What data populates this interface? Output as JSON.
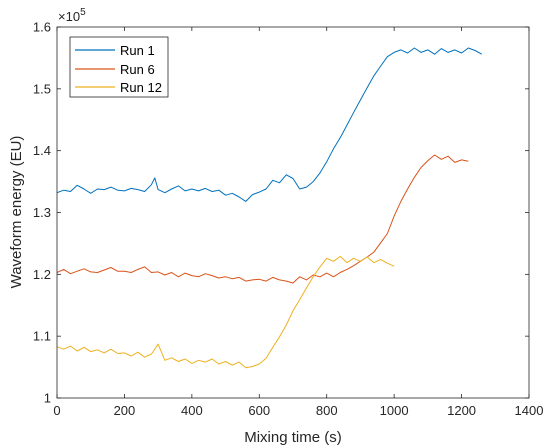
{
  "chart_data": {
    "type": "line",
    "title": "",
    "xlabel": "Mixing time (s)",
    "ylabel": "Waveform energy (EU)",
    "xlim": [
      0,
      1400
    ],
    "ylim": [
      1.0,
      1.6
    ],
    "x_ticks": [
      0,
      200,
      400,
      600,
      800,
      1000,
      1200,
      1400
    ],
    "y_ticks": [
      1.0,
      1.1,
      1.2,
      1.3,
      1.4,
      1.5,
      1.6
    ],
    "y_tick_labels": [
      "1",
      "1.1",
      "1.2",
      "1.3",
      "1.4",
      "1.5",
      "1.6"
    ],
    "y_multiplier_base": "×10",
    "y_multiplier_exp": "5",
    "grid": false,
    "legend_position": "top-left",
    "series": [
      {
        "name": "Run 1",
        "color": "#0072BD",
        "x": [
          0,
          20,
          40,
          60,
          80,
          100,
          120,
          140,
          160,
          180,
          200,
          220,
          240,
          260,
          280,
          290,
          300,
          320,
          340,
          360,
          380,
          400,
          420,
          440,
          460,
          480,
          500,
          520,
          540,
          560,
          580,
          600,
          620,
          640,
          660,
          680,
          700,
          720,
          740,
          760,
          780,
          800,
          820,
          840,
          860,
          880,
          900,
          920,
          940,
          960,
          980,
          1000,
          1020,
          1040,
          1060,
          1080,
          1100,
          1120,
          1140,
          1160,
          1180,
          1200,
          1220,
          1240,
          1260
        ],
        "y": [
          1.332,
          1.336,
          1.334,
          1.344,
          1.338,
          1.331,
          1.338,
          1.337,
          1.341,
          1.336,
          1.335,
          1.339,
          1.337,
          1.334,
          1.345,
          1.356,
          1.337,
          1.332,
          1.338,
          1.343,
          1.335,
          1.338,
          1.335,
          1.339,
          1.334,
          1.336,
          1.328,
          1.331,
          1.325,
          1.318,
          1.329,
          1.333,
          1.338,
          1.352,
          1.348,
          1.361,
          1.355,
          1.338,
          1.341,
          1.35,
          1.364,
          1.382,
          1.403,
          1.421,
          1.441,
          1.462,
          1.482,
          1.502,
          1.521,
          1.537,
          1.552,
          1.559,
          1.563,
          1.558,
          1.566,
          1.559,
          1.563,
          1.556,
          1.565,
          1.559,
          1.563,
          1.558,
          1.566,
          1.562,
          1.556
        ]
      },
      {
        "name": "Run 6",
        "color": "#D95319",
        "x": [
          0,
          20,
          40,
          60,
          80,
          100,
          120,
          140,
          160,
          180,
          200,
          220,
          240,
          260,
          280,
          300,
          320,
          340,
          360,
          380,
          400,
          420,
          440,
          460,
          480,
          500,
          520,
          540,
          560,
          580,
          600,
          620,
          640,
          660,
          680,
          700,
          720,
          740,
          760,
          780,
          800,
          820,
          840,
          860,
          880,
          900,
          920,
          940,
          960,
          980,
          1000,
          1020,
          1040,
          1060,
          1080,
          1100,
          1120,
          1140,
          1160,
          1180,
          1200,
          1220
        ],
        "y": [
          1.203,
          1.208,
          1.201,
          1.205,
          1.209,
          1.204,
          1.203,
          1.207,
          1.211,
          1.205,
          1.205,
          1.203,
          1.208,
          1.212,
          1.203,
          1.204,
          1.199,
          1.203,
          1.196,
          1.202,
          1.198,
          1.196,
          1.201,
          1.198,
          1.194,
          1.196,
          1.193,
          1.195,
          1.189,
          1.191,
          1.192,
          1.189,
          1.195,
          1.191,
          1.189,
          1.186,
          1.196,
          1.191,
          1.199,
          1.196,
          1.202,
          1.196,
          1.203,
          1.208,
          1.214,
          1.221,
          1.228,
          1.236,
          1.251,
          1.266,
          1.294,
          1.318,
          1.338,
          1.357,
          1.373,
          1.384,
          1.393,
          1.386,
          1.391,
          1.381,
          1.385,
          1.383
        ]
      },
      {
        "name": "Run 12",
        "color": "#EDB120",
        "x": [
          0,
          20,
          40,
          60,
          80,
          100,
          120,
          140,
          160,
          180,
          200,
          220,
          240,
          260,
          280,
          300,
          320,
          340,
          360,
          380,
          400,
          420,
          440,
          460,
          480,
          500,
          520,
          540,
          560,
          580,
          600,
          620,
          640,
          660,
          680,
          700,
          720,
          740,
          760,
          780,
          800,
          820,
          840,
          860,
          880,
          900,
          920,
          940,
          960,
          980,
          1000
        ],
        "y": [
          1.083,
          1.079,
          1.084,
          1.076,
          1.082,
          1.075,
          1.078,
          1.073,
          1.079,
          1.072,
          1.073,
          1.068,
          1.074,
          1.066,
          1.071,
          1.087,
          1.061,
          1.065,
          1.059,
          1.063,
          1.056,
          1.061,
          1.058,
          1.063,
          1.055,
          1.059,
          1.053,
          1.058,
          1.049,
          1.051,
          1.055,
          1.064,
          1.082,
          1.099,
          1.118,
          1.141,
          1.159,
          1.178,
          1.196,
          1.212,
          1.226,
          1.221,
          1.229,
          1.219,
          1.226,
          1.221,
          1.228,
          1.219,
          1.224,
          1.218,
          1.213
        ]
      }
    ]
  }
}
